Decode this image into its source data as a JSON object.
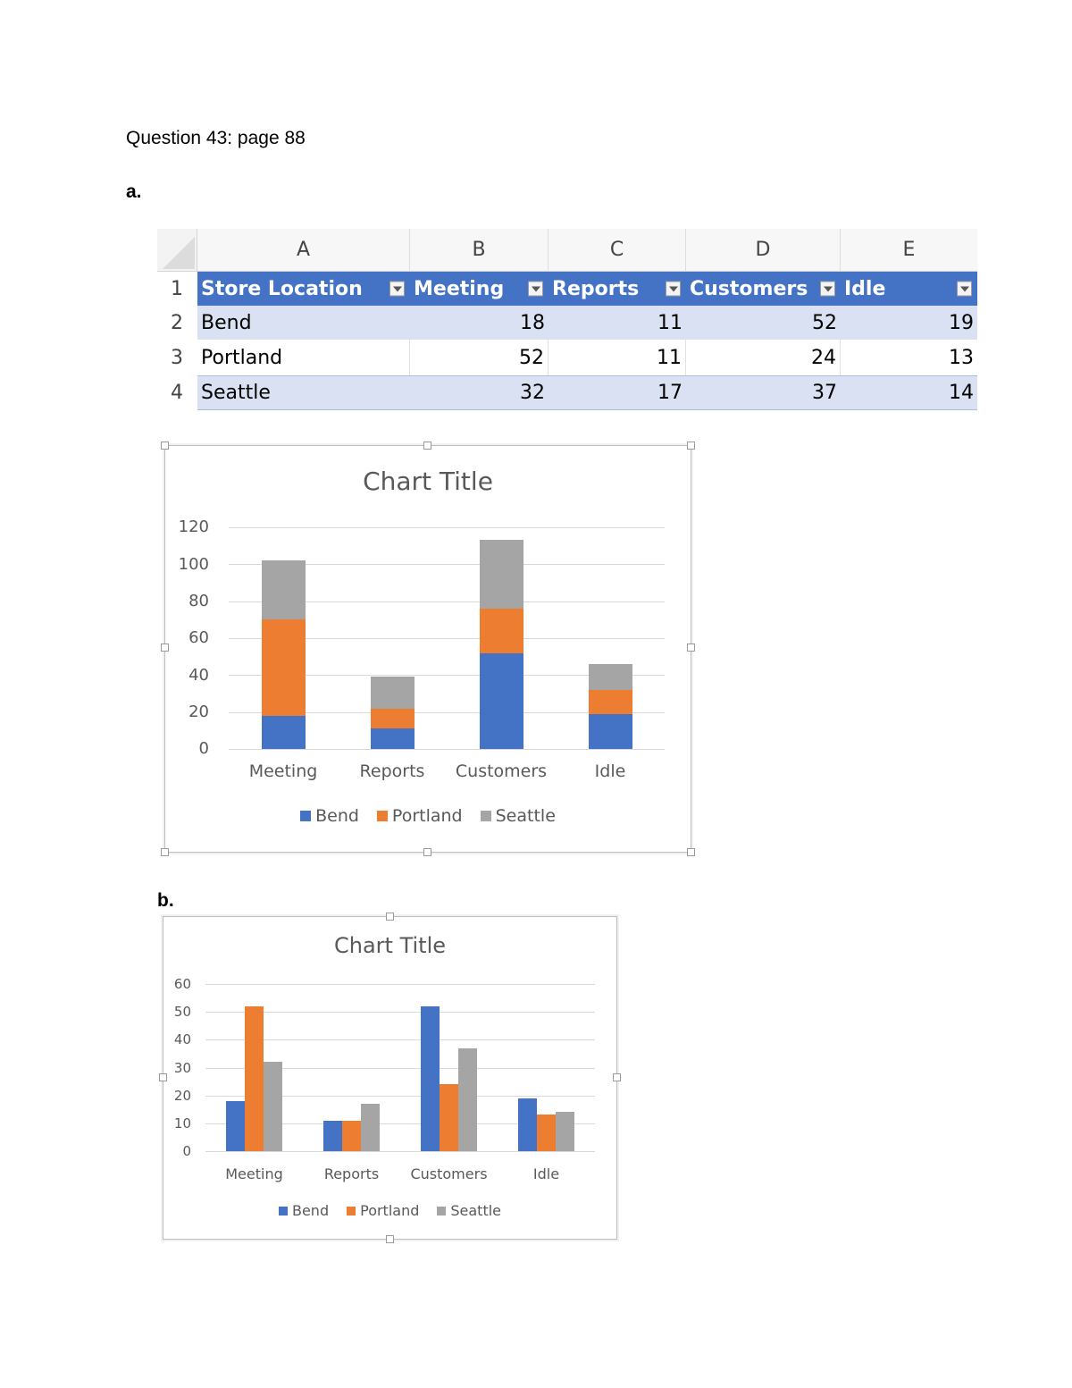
{
  "document": {
    "heading": "Question 43: page 88",
    "part_a_label": "a.",
    "part_b_label": "b."
  },
  "spreadsheet": {
    "column_letters": [
      "A",
      "B",
      "C",
      "D",
      "E"
    ],
    "row_numbers": [
      "1",
      "2",
      "3",
      "4"
    ],
    "headers": [
      "Store Location",
      "Meeting",
      "Reports",
      "Customers",
      "Idle"
    ],
    "rows": [
      {
        "location": "Bend",
        "values": [
          "18",
          "11",
          "52",
          "19"
        ]
      },
      {
        "location": "Portland",
        "values": [
          "52",
          "11",
          "24",
          "13"
        ]
      },
      {
        "location": "Seattle",
        "values": [
          "32",
          "17",
          "37",
          "14"
        ]
      }
    ],
    "colors": {
      "header": "#4472c4",
      "band": "#d9e1f2"
    }
  },
  "colors": {
    "Bend": "#4472c4",
    "Portland": "#ed7d31",
    "Seattle": "#a5a5a5"
  },
  "chart_data": [
    {
      "type": "bar",
      "stacked": true,
      "title": "Chart Title",
      "xlabel": "",
      "ylabel": "",
      "categories": [
        "Meeting",
        "Reports",
        "Customers",
        "Idle"
      ],
      "series": [
        {
          "name": "Bend",
          "values": [
            18,
            11,
            52,
            19
          ],
          "color": "#4472c4"
        },
        {
          "name": "Portland",
          "values": [
            52,
            11,
            24,
            13
          ],
          "color": "#ed7d31"
        },
        {
          "name": "Seattle",
          "values": [
            32,
            17,
            37,
            14
          ],
          "color": "#a5a5a5"
        }
      ],
      "yticks": [
        "0",
        "20",
        "40",
        "60",
        "80",
        "100",
        "120"
      ],
      "ylim": [
        0,
        120
      ],
      "grid": true,
      "legend_position": "bottom"
    },
    {
      "type": "bar",
      "stacked": false,
      "title": "Chart Title",
      "xlabel": "",
      "ylabel": "",
      "categories": [
        "Meeting",
        "Reports",
        "Customers",
        "Idle"
      ],
      "series": [
        {
          "name": "Bend",
          "values": [
            18,
            11,
            52,
            19
          ],
          "color": "#4472c4"
        },
        {
          "name": "Portland",
          "values": [
            52,
            11,
            24,
            13
          ],
          "color": "#ed7d31"
        },
        {
          "name": "Seattle",
          "values": [
            32,
            17,
            37,
            14
          ],
          "color": "#a5a5a5"
        }
      ],
      "yticks": [
        "0",
        "10",
        "20",
        "30",
        "40",
        "50",
        "60"
      ],
      "ylim": [
        0,
        60
      ],
      "grid": true,
      "legend_position": "bottom"
    }
  ]
}
